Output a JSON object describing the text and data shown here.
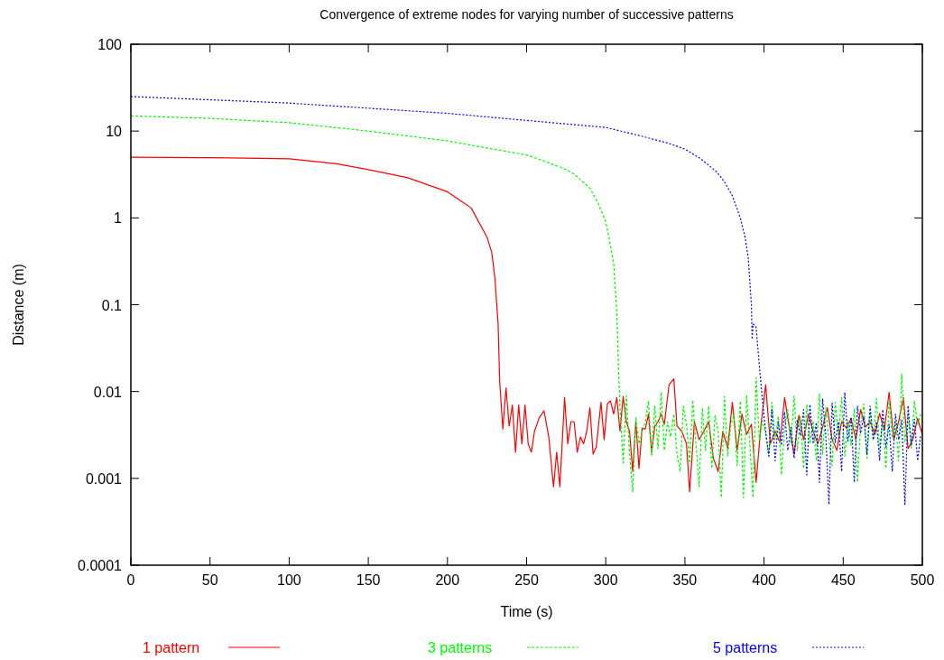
{
  "chart_data": {
    "type": "line",
    "title": "Convergence of extreme nodes for varying number of successive patterns",
    "xlabel": "Time (s)",
    "ylabel": "Distance (m)",
    "log": "y",
    "xlim": [
      0,
      500
    ],
    "xticks": [
      0,
      50,
      100,
      150,
      200,
      250,
      300,
      350,
      400,
      450,
      500
    ],
    "ylim": [
      0.0001,
      100
    ],
    "yticks": [
      0.0001,
      0.001,
      0.01,
      0.1,
      1,
      10,
      100
    ],
    "legend": "bottom",
    "grid": false,
    "series": [
      {
        "name": "1 pattern",
        "color": "#ff0000",
        "line_style": "solid",
        "x": [
          0,
          50,
          100,
          130,
          150,
          175,
          200,
          215,
          225,
          228,
          230,
          232,
          233,
          235,
          237,
          239,
          241,
          243,
          245,
          247,
          249,
          251,
          253,
          255,
          258,
          261,
          264,
          267,
          269,
          271,
          274,
          276,
          278,
          280,
          282,
          284,
          286,
          288,
          290,
          292,
          294,
          297,
          299,
          301,
          303,
          305,
          307,
          309,
          311,
          313,
          315,
          317,
          319,
          321,
          323,
          325,
          327,
          329,
          331,
          333,
          335,
          337,
          340,
          343,
          345,
          348,
          351,
          353,
          356,
          359,
          362,
          365,
          368,
          371,
          374,
          377,
          380,
          383,
          386,
          389,
          392,
          395,
          398,
          401,
          404,
          407,
          410,
          413,
          416,
          419,
          422,
          425,
          428,
          431,
          434,
          437,
          440,
          443,
          446,
          449,
          452,
          455,
          458,
          461,
          464,
          467,
          470,
          473,
          476,
          479,
          482,
          485,
          488,
          491,
          494,
          497,
          500
        ],
        "values": [
          5,
          4.95,
          4.8,
          4.2,
          3.6,
          2.9,
          2,
          1.3,
          0.6,
          0.4,
          0.2,
          0.06,
          0.013,
          0.0037,
          0.011,
          0.004,
          0.007,
          0.002,
          0.007,
          0.0025,
          0.007,
          0.0025,
          0.002,
          0.0035,
          0.005,
          0.006,
          0.003,
          0.0008,
          0.002,
          0.0008,
          0.0085,
          0.0025,
          0.0045,
          0.0045,
          0.002,
          0.003,
          0.0025,
          0.0035,
          0.0065,
          0.0019,
          0.0023,
          0.0075,
          0.0028,
          0.0072,
          0.0078,
          0.0055,
          0.0085,
          0.0035,
          0.0088,
          0.0045,
          0.0035,
          0.0012,
          0.0045,
          0.0013,
          0.0038,
          0.0037,
          0.0055,
          0.002,
          0.004,
          0.0045,
          0.0055,
          0.0042,
          0.012,
          0.014,
          0.004,
          0.0035,
          0.0025,
          0.0007,
          0.0045,
          0.0028,
          0.0035,
          0.0045,
          0.0017,
          0.0012,
          0.0035,
          0.0022,
          0.0075,
          0.0021,
          0.0055,
          0.0032,
          0.0042,
          0.0009,
          0.004,
          0.012,
          0.0025,
          0.0035,
          0.0026,
          0.0085,
          0.0038,
          0.0019,
          0.0053,
          0.0028,
          0.0055,
          0.0035,
          0.0025,
          0.0039,
          0.0065,
          0.0028,
          0.0021,
          0.0045,
          0.0038,
          0.0049,
          0.0028,
          0.0062,
          0.0039,
          0.0045,
          0.0032,
          0.0056,
          0.0036,
          0.0098,
          0.0028,
          0.0045,
          0.0085,
          0.0022,
          0.0028,
          0.0049,
          0.0032
        ]
      },
      {
        "name": "3 patterns",
        "color": "#00ff00",
        "line_style": "dashed",
        "x": [
          0,
          50,
          100,
          150,
          200,
          250,
          260,
          275,
          280,
          290,
          295,
          300,
          302,
          305,
          307,
          308,
          309,
          311,
          313,
          315,
          317,
          319,
          321,
          323,
          325,
          327,
          329,
          331,
          333,
          335,
          337,
          339,
          341,
          343,
          345,
          347,
          349,
          351,
          353,
          355,
          357,
          359,
          361,
          363,
          365,
          367,
          369,
          371,
          373,
          375,
          377,
          379,
          381,
          383,
          385,
          387,
          389,
          391,
          393,
          395,
          397,
          399,
          401,
          403,
          405,
          407,
          409,
          411,
          413,
          415,
          417,
          419,
          421,
          423,
          425,
          427,
          429,
          431,
          433,
          435,
          437,
          439,
          441,
          443,
          445,
          447,
          449,
          451,
          453,
          455,
          457,
          459,
          461,
          463,
          465,
          467,
          469,
          471,
          473,
          475,
          477,
          479,
          481,
          483,
          485,
          487,
          489,
          491,
          493,
          495,
          497,
          499
        ],
        "values": [
          15,
          14,
          12.5,
          10,
          7.7,
          5.3,
          4.6,
          3.6,
          3.2,
          2.2,
          1.5,
          0.9,
          0.6,
          0.3,
          0.08,
          0.02,
          0.0065,
          0.0015,
          0.009,
          0.002,
          0.0007,
          0.005,
          0.0025,
          0.0034,
          0.0045,
          0.0078,
          0.0018,
          0.0068,
          0.0022,
          0.0098,
          0.0021,
          0.0045,
          0.003,
          0.0055,
          0.0019,
          0.0012,
          0.0068,
          0.0042,
          0.0015,
          0.008,
          0.0025,
          0.0008,
          0.0065,
          0.0021,
          0.0068,
          0.0013,
          0.0053,
          0.0035,
          0.0006,
          0.0088,
          0.0018,
          0.0041,
          0.0055,
          0.0014,
          0.0078,
          0.0006,
          0.0091,
          0.0025,
          0.0006,
          0.0145,
          0.0028,
          0.0046,
          0.0033,
          0.0018,
          0.0075,
          0.0028,
          0.0052,
          0.0011,
          0.0038,
          0.0062,
          0.0025,
          0.0089,
          0.0021,
          0.0052,
          0.0013,
          0.0071,
          0.0025,
          0.0046,
          0.0016,
          0.0095,
          0.0019,
          0.0065,
          0.0027,
          0.0014,
          0.0075,
          0.0031,
          0.0085,
          0.0018,
          0.0046,
          0.0024,
          0.0063,
          0.0009,
          0.0041,
          0.0072,
          0.0017,
          0.0057,
          0.0027,
          0.0083,
          0.0022,
          0.0048,
          0.0013,
          0.0077,
          0.0029,
          0.0045,
          0.0016,
          0.016,
          0.0026,
          0.0056,
          0.0022,
          0.0078,
          0.0041,
          0.0055
        ]
      },
      {
        "name": "5 patterns",
        "color": "#0000ff",
        "line_style": "dotted",
        "x": [
          0,
          100,
          200,
          300,
          320,
          340,
          350,
          360,
          370,
          375,
          380,
          385,
          388,
          390,
          392,
          392.5,
          393,
          395,
          397,
          399,
          401,
          403,
          405,
          407,
          409,
          411,
          413,
          415,
          417,
          419,
          421,
          423,
          425,
          427,
          429,
          431,
          433,
          435,
          437,
          439,
          441,
          443,
          445,
          447,
          449,
          451,
          453,
          455,
          457,
          459,
          461,
          463,
          465,
          467,
          469,
          471,
          473,
          475,
          477,
          479,
          481,
          483,
          485,
          487,
          489,
          491,
          493,
          495,
          497,
          499
        ],
        "values": [
          25,
          21,
          16,
          11,
          9,
          7.2,
          6.2,
          4.8,
          3.4,
          2.6,
          1.8,
          1,
          0.6,
          0.35,
          0.1,
          0.04,
          0.06,
          0.055,
          0.02,
          0.008,
          0.0035,
          0.0018,
          0.0062,
          0.0016,
          0.0045,
          0.0024,
          0.0058,
          0.0021,
          0.0039,
          0.0017,
          0.0047,
          0.0031,
          0.0062,
          0.0011,
          0.0071,
          0.0025,
          0.0044,
          0.0009,
          0.0083,
          0.0031,
          0.0005,
          0.0074,
          0.0026,
          0.0045,
          0.0012,
          0.0098,
          0.0027,
          0.0051,
          0.0009,
          0.0068,
          0.0033,
          0.0052,
          0.0019,
          0.0068,
          0.0028,
          0.0045,
          0.0016,
          0.0062,
          0.0023,
          0.0042,
          0.0012,
          0.0055,
          0.0028,
          0.0047,
          0.0005,
          0.0069,
          0.0024,
          0.0048,
          0.0016,
          0.0032
        ]
      }
    ]
  }
}
